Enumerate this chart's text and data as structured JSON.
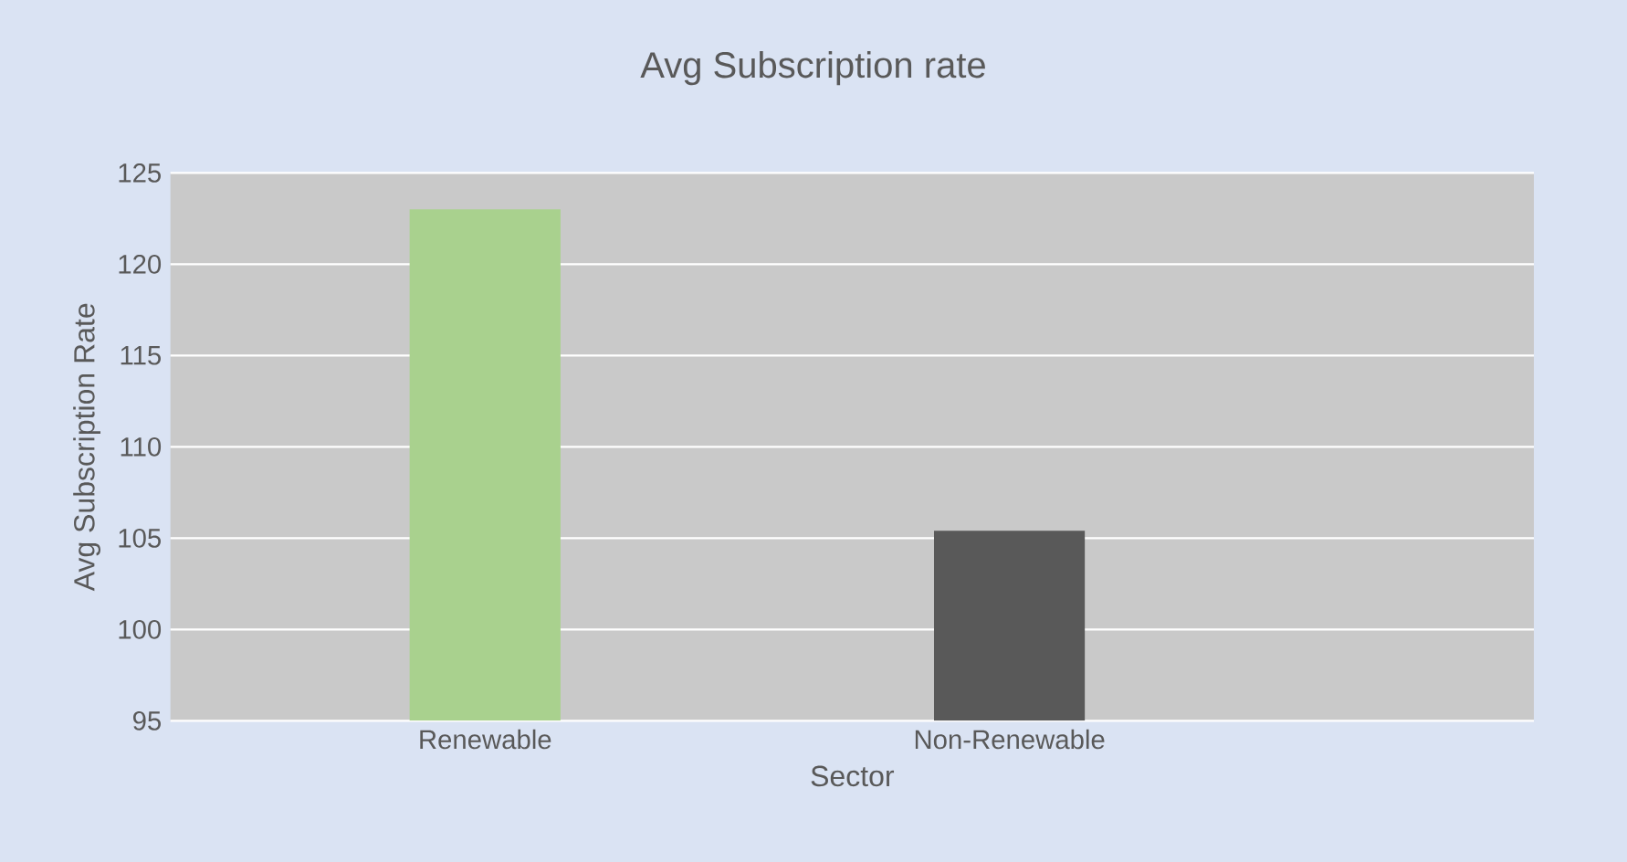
{
  "chart_data": {
    "type": "bar",
    "title": "Avg Subscription rate",
    "xlabel": "Sector",
    "ylabel": "Avg Subscription Rate",
    "categories": [
      "Renewable",
      "Non-Renewable"
    ],
    "values": [
      123,
      105.4
    ],
    "colors": [
      "#a9d18e",
      "#595959"
    ],
    "ylim": [
      95,
      125
    ],
    "yticks": [
      95,
      100,
      105,
      110,
      115,
      120,
      125
    ],
    "grid": "y"
  }
}
